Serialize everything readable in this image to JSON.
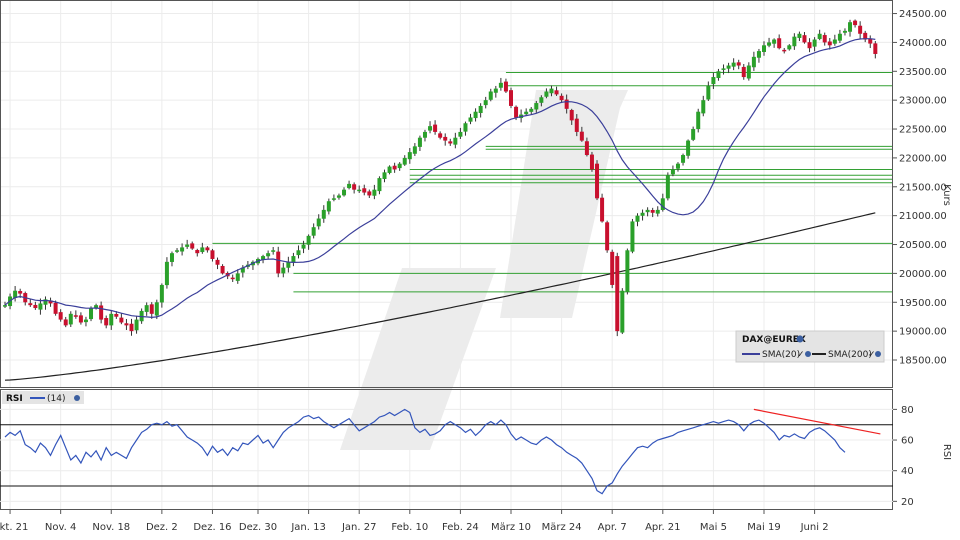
{
  "chart_data": {
    "type": "candlestick",
    "instrument": "DAX@EUREX",
    "colors": {
      "up": "#2aa02a",
      "down": "#c8102e",
      "sma20": "#3b3f9a",
      "sma200": "#222222",
      "support": "#33a033",
      "rsi": "#3355bb",
      "rsi_trend": "#ee2222",
      "watermark": "#dcdcdc"
    },
    "price_axis": {
      "label": "Kurs",
      "ylim": [
        18050,
        24700
      ],
      "ticks": [
        "18500.00",
        "19000.00",
        "19500.00",
        "20000.00",
        "20500.00",
        "21000.00",
        "21500.00",
        "22000.00",
        "22500.00",
        "23000.00",
        "23500.00",
        "24000.00",
        "24500.00"
      ]
    },
    "rsi_axis": {
      "label": "RSI",
      "ylim": [
        15,
        92
      ],
      "ticks": [
        "20",
        "40",
        "60",
        "80"
      ],
      "levels": [
        70,
        30
      ]
    },
    "x_axis": {
      "labels": [
        "Okt. 21",
        "Nov. 4",
        "Nov. 18",
        "Dez. 2",
        "Dez. 16",
        "Dez. 30",
        "Jan. 13",
        "Jan. 27",
        "Feb. 10",
        "Feb. 24",
        "März 10",
        "März 24",
        "Apr. 7",
        "Apr. 21",
        "Mai 5",
        "Mai 19",
        "Juni 2"
      ],
      "label_index": [
        1,
        11,
        21,
        31,
        41,
        50,
        60,
        70,
        80,
        90,
        100,
        110,
        120,
        130,
        140,
        150,
        160
      ]
    },
    "legend": {
      "instrument": "DAX@EUREX",
      "sma20": "SMA(20)",
      "sma200": "SMA(200)",
      "rsi_title": "RSI",
      "rsi_period": "(14)"
    },
    "support_lines": [
      {
        "value": 23480,
        "from_index": 99
      },
      {
        "value": 23250,
        "from_index": 99
      },
      {
        "value": 22200,
        "from_index": 95
      },
      {
        "value": 22150,
        "from_index": 95
      },
      {
        "value": 21800,
        "from_index": 80
      },
      {
        "value": 21700,
        "from_index": 80
      },
      {
        "value": 21630,
        "from_index": 80
      },
      {
        "value": 21570,
        "from_index": 80
      },
      {
        "value": 20520,
        "from_index": 41
      },
      {
        "value": 20000,
        "from_index": 57
      },
      {
        "value": 19680,
        "from_index": 57
      }
    ],
    "rsi_trendline": {
      "from": [
        148,
        80
      ],
      "to": [
        173,
        64
      ]
    },
    "closes": [
      19450,
      19600,
      19700,
      19650,
      19500,
      19450,
      19400,
      19480,
      19550,
      19480,
      19300,
      19200,
      19100,
      19300,
      19250,
      19150,
      19200,
      19400,
      19450,
      19200,
      19100,
      19300,
      19250,
      19150,
      19100,
      19000,
      19200,
      19350,
      19450,
      19300,
      19500,
      19800,
      20200,
      20350,
      20400,
      20450,
      20500,
      20430,
      20350,
      20450,
      20400,
      20250,
      20150,
      20000,
      19950,
      19900,
      20000,
      20100,
      20150,
      20200,
      20250,
      20300,
      20350,
      20400,
      20000,
      20100,
      20200,
      20300,
      20400,
      20500,
      20650,
      20800,
      20950,
      21100,
      21250,
      21300,
      21350,
      21450,
      21550,
      21450,
      21450,
      21400,
      21350,
      21450,
      21650,
      21750,
      21850,
      21800,
      21900,
      22000,
      22100,
      22200,
      22350,
      22450,
      22550,
      22450,
      22350,
      22300,
      22250,
      22350,
      22450,
      22600,
      22700,
      22800,
      22900,
      23000,
      23150,
      23200,
      23300,
      23150,
      22900,
      22700,
      22750,
      22800,
      22850,
      22950,
      23050,
      23150,
      23200,
      23100,
      23000,
      22850,
      22650,
      22450,
      22300,
      22050,
      21800,
      21300,
      20900,
      20400,
      19800,
      19000,
      19700,
      20400,
      20900,
      21000,
      21050,
      21100,
      21050,
      21100,
      21300,
      21700,
      21800,
      21900,
      22050,
      22300,
      22500,
      22800,
      23000,
      23250,
      23400,
      23500,
      23550,
      23600,
      23650,
      23600,
      23400,
      23600,
      23750,
      23850,
      23950,
      24000,
      24050,
      23900,
      23850,
      23950,
      24100,
      24150,
      24000,
      23900,
      24050,
      24150,
      24000,
      23950,
      24050,
      24150,
      24200,
      24350,
      24300,
      24150,
      24050,
      23980,
      23800
    ],
    "rsi_values": [
      62,
      65,
      63,
      66,
      57,
      55,
      52,
      58,
      55,
      50,
      57,
      63,
      55,
      47,
      50,
      45,
      52,
      49,
      53,
      47,
      55,
      50,
      52,
      50,
      48,
      55,
      60,
      65,
      67,
      70,
      71,
      70,
      72,
      69,
      70,
      66,
      62,
      60,
      58,
      55,
      50,
      56,
      52,
      54,
      50,
      55,
      53,
      58,
      57,
      60,
      63,
      58,
      60,
      55,
      60,
      65,
      68,
      70,
      72,
      75,
      76,
      74,
      75,
      72,
      70,
      68,
      70,
      72,
      74,
      70,
      66,
      68,
      70,
      72,
      75,
      76,
      78,
      76,
      78,
      80,
      78,
      68,
      65,
      67,
      63,
      64,
      66,
      70,
      72,
      70,
      68,
      65,
      67,
      63,
      66,
      70,
      72,
      70,
      73,
      70,
      64,
      60,
      62,
      60,
      58,
      57,
      60,
      62,
      60,
      57,
      55,
      52,
      50,
      48,
      45,
      40,
      35,
      27,
      25,
      30,
      32,
      38,
      43,
      47,
      51,
      55,
      56,
      55,
      58,
      60,
      61,
      62,
      63,
      65,
      66,
      67,
      68,
      69,
      70,
      71,
      72,
      71,
      72,
      73,
      72,
      70,
      66,
      70,
      72,
      73,
      71,
      68,
      65,
      60,
      63,
      62,
      64,
      62,
      61,
      65,
      67,
      68,
      66,
      63,
      60,
      55,
      52
    ]
  }
}
